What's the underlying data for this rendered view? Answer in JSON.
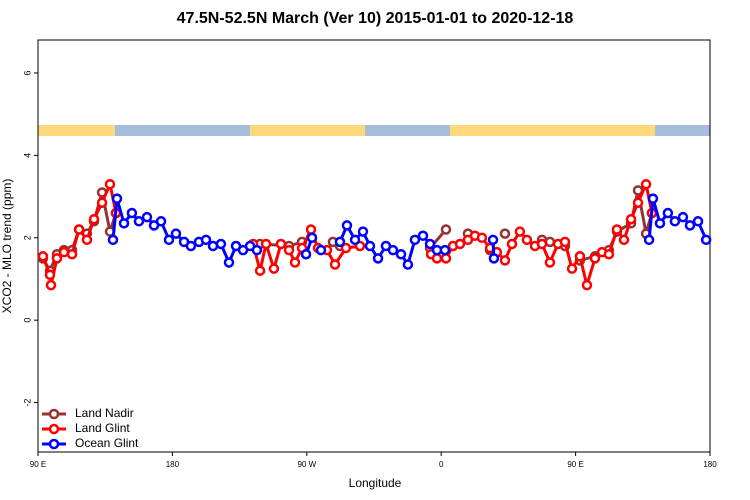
{
  "chart_data": {
    "type": "line",
    "title": "47.5N-52.5N March (Ver 10)   2015-01-01 to 2020-12-18",
    "xlabel": "Longitude",
    "ylabel": "XCO2 - MLO trend (ppm)",
    "xlim": [
      90,
      540
    ],
    "xticks": [
      {
        "value": 90,
        "label": "90 E"
      },
      180,
      {
        "value": 270,
        "label": "90 W"
      },
      {
        "value": 360,
        "label": "0"
      },
      {
        "value": 450,
        "label": "90 E"
      },
      {
        "value": 540,
        "label": "180"
      }
    ],
    "ylim": [
      -3.2,
      6.8
    ],
    "yticks": [
      -2,
      0,
      2,
      4,
      6
    ],
    "legend": "lower left",
    "series": [
      {
        "name": "Land Nadir",
        "color": "#983232",
        "x": [
          93.3,
          98.0,
          102.7,
          107.4,
          112.8,
          117.5,
          122.8,
          127.5,
          132.9,
          138.2,
          142.2,
          null,
          238.7,
          258.1,
          266.8,
          null,
          287.5,
          292.2,
          null,
          352.5,
          363.2,
          null,
          377.9,
          null,
          392.7,
          null,
          402.7,
          null,
          427.5,
          432.8,
          442.9,
          null,
          452.9,
          463.0,
          472.3,
          477.7,
          487.1,
          491.8,
          497.2,
          501.1
        ],
        "values": [
          1.5,
          1.2,
          1.6,
          1.7,
          1.7,
          2.2,
          2.1,
          2.4,
          3.1,
          2.15,
          2.6,
          null,
          1.85,
          1.8,
          1.9,
          null,
          1.9,
          1.8,
          null,
          1.75,
          2.2,
          null,
          2.1,
          null,
          1.7,
          null,
          2.1,
          null,
          1.95,
          1.9,
          1.8,
          null,
          1.45,
          1.55,
          1.7,
          2.15,
          2.35,
          3.15,
          2.1,
          2.6
        ]
      },
      {
        "name": "Land Glint",
        "color": "#ff0000",
        "x": [
          93.3,
          98.0,
          98.7,
          102.7,
          107.4,
          112.8,
          117.5,
          122.8,
          127.5,
          132.9,
          138.2,
          142.2,
          null,
          234.0,
          238.7,
          242.7,
          248.0,
          252.7,
          258.1,
          262.1,
          266.8,
          272.8,
          277.5,
          283.5,
          288.9,
          296.2,
          305.6,
          null,
          353.2,
          357.2,
          363.2,
          367.9,
          372.6,
          377.9,
          382.6,
          387.3,
          392.7,
          397.3,
          402.7,
          407.4,
          412.7,
          417.4,
          422.8,
          427.5,
          432.8,
          438.2,
          442.9,
          447.6,
          452.9,
          457.6,
          463.0,
          467.7,
          472.3,
          477.7,
          482.4,
          487.1,
          491.8,
          497.2,
          501.1
        ],
        "values": [
          1.55,
          1.1,
          0.85,
          1.5,
          1.65,
          1.6,
          2.2,
          1.95,
          2.45,
          2.85,
          3.3,
          2.6,
          null,
          1.85,
          1.2,
          1.85,
          1.25,
          1.85,
          1.7,
          1.4,
          1.75,
          2.2,
          1.75,
          1.7,
          1.35,
          1.75,
          1.8,
          null,
          1.6,
          1.5,
          1.5,
          1.8,
          1.85,
          1.95,
          2.05,
          2.0,
          1.75,
          1.65,
          1.45,
          1.85,
          2.15,
          1.95,
          1.8,
          1.85,
          1.4,
          1.85,
          1.9,
          1.25,
          1.55,
          0.85,
          1.5,
          1.65,
          1.6,
          2.2,
          1.95,
          2.45,
          2.85,
          3.3,
          2.6
        ]
      },
      {
        "name": "Ocean Glint",
        "color": "#0000ff",
        "x": [
          140.2,
          142.9,
          147.6,
          152.9,
          157.6,
          163.0,
          167.7,
          172.4,
          177.7,
          182.4,
          187.8,
          192.4,
          197.8,
          202.5,
          207.2,
          212.5,
          217.9,
          222.6,
          227.3,
          232.0,
          236.6,
          null,
          269.5,
          273.5,
          null,
          279.5,
          null,
          292.2,
          296.9,
          302.3,
          307.6,
          312.3,
          317.7,
          323.0,
          327.7,
          333.1,
          337.7,
          342.4,
          347.8,
          352.5,
          357.2,
          362.5,
          null,
          394.7,
          395.3,
          null,
          499.2,
          501.8,
          506.5,
          511.8,
          516.5,
          521.9,
          526.6,
          532.0,
          537.4
        ],
        "values": [
          1.95,
          2.95,
          2.35,
          2.6,
          2.4,
          2.5,
          2.3,
          2.4,
          1.95,
          2.1,
          1.9,
          1.8,
          1.9,
          1.95,
          1.8,
          1.85,
          1.4,
          1.8,
          1.7,
          1.8,
          1.7,
          null,
          1.6,
          2.0,
          null,
          1.7,
          null,
          1.9,
          2.3,
          1.95,
          2.15,
          1.8,
          1.5,
          1.8,
          1.7,
          1.6,
          1.35,
          1.95,
          2.05,
          1.85,
          1.7,
          1.7,
          null,
          1.95,
          1.5,
          null,
          1.95,
          2.95,
          2.35,
          2.6,
          2.4,
          2.5,
          2.3,
          2.4,
          1.95
        ]
      }
    ]
  }
}
